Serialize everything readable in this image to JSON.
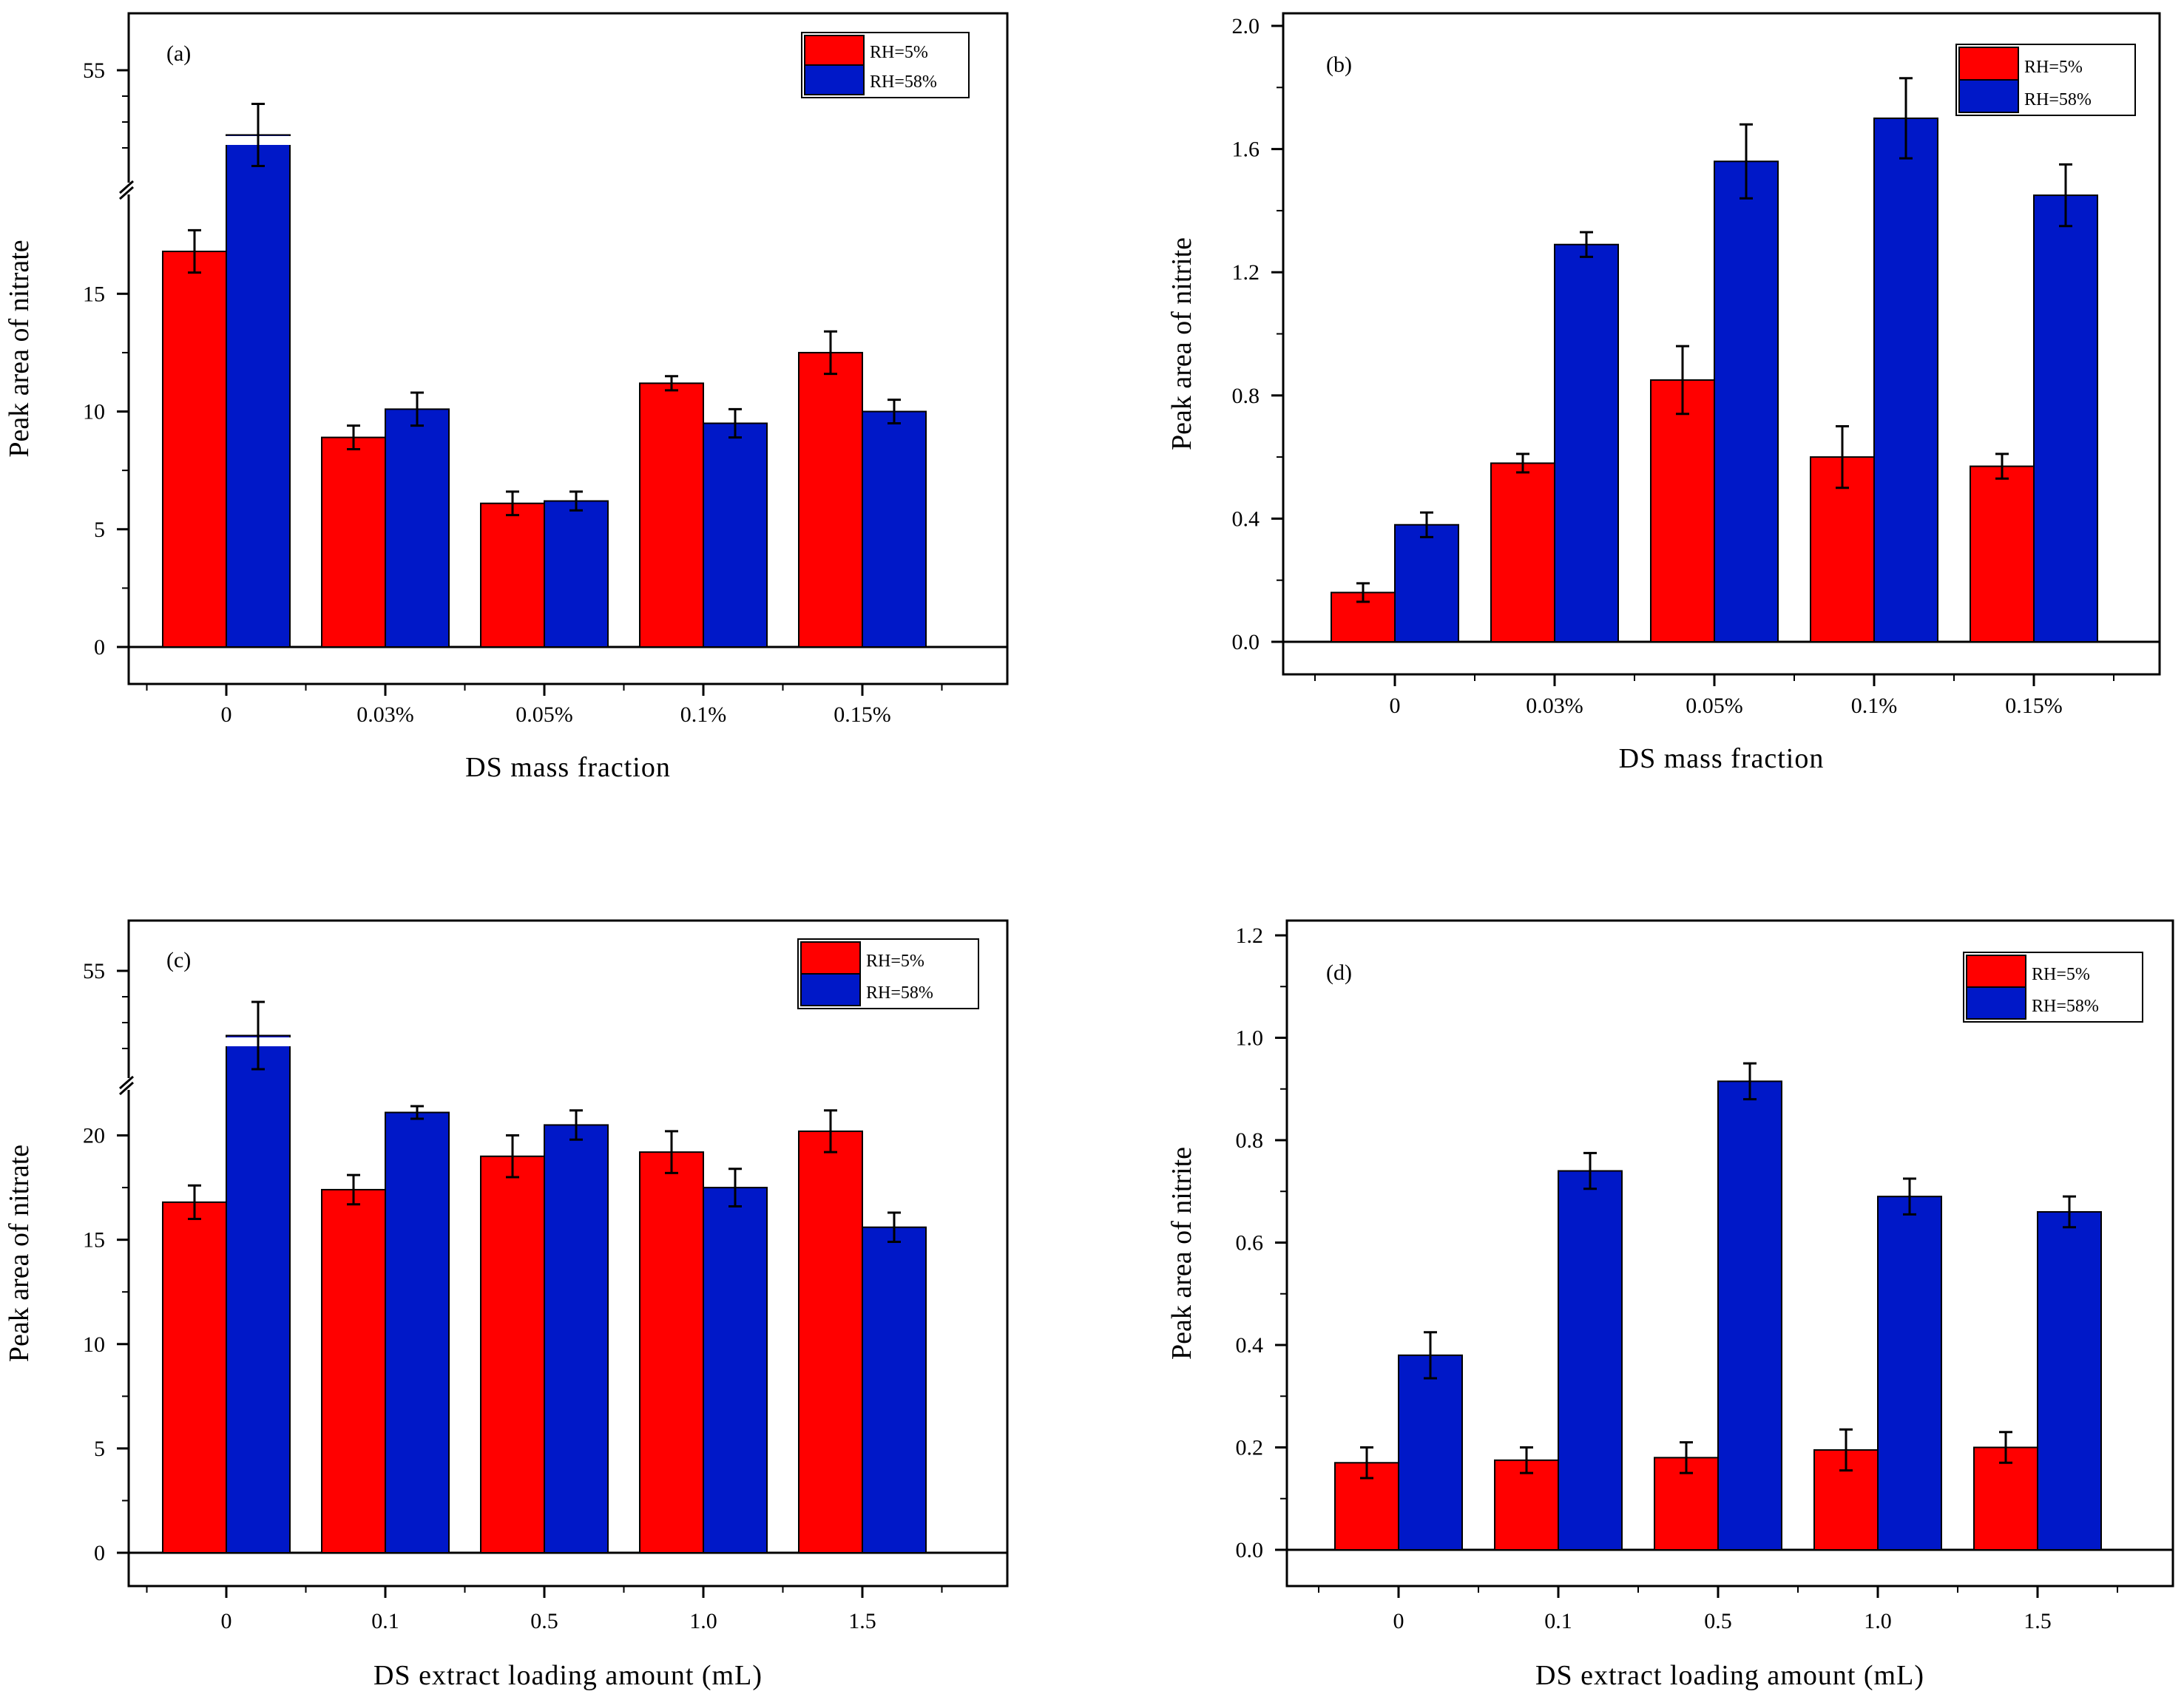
{
  "colors": {
    "rh5": "#ff0000",
    "rh58": "#0018c8"
  },
  "chart_data": [
    {
      "id": "a",
      "type": "bar",
      "panel_label": "(a)",
      "xlabel": "DS mass fraction",
      "ylabel": "Peak area of nitrate",
      "categories": [
        "0",
        "0.03%",
        "0.05%",
        "0.1%",
        "0.15%"
      ],
      "ylim": [
        -1.5,
        28.5
      ],
      "axis_break": {
        "lower_max": 19.5,
        "upper_value": 55
      },
      "yticks": [
        0,
        5,
        10,
        15
      ],
      "ytick_labels": [
        "0",
        "5",
        "10",
        "15"
      ],
      "upper_tick_label": "55",
      "legend": [
        "RH=5%",
        "RH=58%"
      ],
      "series": [
        {
          "name": "RH=5%",
          "values": [
            16.8,
            8.9,
            6.1,
            11.2,
            12.5
          ],
          "errors": [
            0.9,
            0.5,
            0.5,
            0.3,
            0.9
          ]
        },
        {
          "name": "RH=58%",
          "values": [
            52.5,
            10.1,
            6.2,
            9.5,
            10.0
          ],
          "errors": [
            1.2,
            0.7,
            0.4,
            0.6,
            0.5
          ]
        }
      ]
    },
    {
      "id": "b",
      "type": "bar",
      "panel_label": "(b)",
      "xlabel": "DS mass fraction",
      "ylabel": "Peak area of nitrite",
      "categories": [
        "0",
        "0.03%",
        "0.05%",
        "0.1%",
        "0.15%"
      ],
      "ylim": [
        -0.11,
        2.0
      ],
      "yticks": [
        0.0,
        0.4,
        0.8,
        1.2,
        1.6,
        2.0
      ],
      "ytick_labels": [
        "0.0",
        "0.4",
        "0.8",
        "1.2",
        "1.6",
        "2.0"
      ],
      "legend": [
        "RH=5%",
        "RH=58%"
      ],
      "series": [
        {
          "name": "RH=5%",
          "values": [
            0.16,
            0.58,
            0.85,
            0.6,
            0.57
          ],
          "errors": [
            0.03,
            0.03,
            0.11,
            0.1,
            0.04
          ]
        },
        {
          "name": "RH=58%",
          "values": [
            0.38,
            1.29,
            1.56,
            1.7,
            1.45
          ],
          "errors": [
            0.04,
            0.04,
            0.12,
            0.13,
            0.1
          ]
        }
      ]
    },
    {
      "id": "c",
      "type": "bar",
      "panel_label": "(c)",
      "xlabel": "DS extract loading amount (mL)",
      "ylabel": "Peak area of nitrate",
      "categories": [
        "0",
        "0.1",
        "0.5",
        "1.0",
        "1.5"
      ],
      "ylim": [
        -1.5,
        32.5
      ],
      "axis_break": {
        "lower_max": 22.5,
        "upper_value": 55
      },
      "yticks": [
        0,
        5,
        10,
        15,
        20
      ],
      "ytick_labels": [
        "0",
        "5",
        "10",
        "15",
        "20"
      ],
      "upper_tick_label": "55",
      "legend": [
        "RH=5%",
        "RH=58%"
      ],
      "series": [
        {
          "name": "RH=5%",
          "values": [
            16.8,
            17.4,
            19.0,
            19.2,
            20.2
          ],
          "errors": [
            0.8,
            0.7,
            1.0,
            1.0,
            1.0
          ]
        },
        {
          "name": "RH=58%",
          "values": [
            52.5,
            21.1,
            20.5,
            17.5,
            15.6
          ],
          "errors": [
            1.3,
            0.3,
            0.7,
            0.9,
            0.7
          ]
        }
      ]
    },
    {
      "id": "d",
      "type": "bar",
      "panel_label": "(d)",
      "xlabel": "DS extract loading amount (mL)",
      "ylabel": "Peak area of nitrite",
      "categories": [
        "0",
        "0.1",
        "0.5",
        "1.0",
        "1.5"
      ],
      "ylim": [
        -0.065,
        1.2
      ],
      "yticks": [
        0.0,
        0.2,
        0.4,
        0.6,
        0.8,
        1.0,
        1.2
      ],
      "ytick_labels": [
        "0.0",
        "0.2",
        "0.4",
        "0.6",
        "0.8",
        "1.0",
        "1.2"
      ],
      "legend": [
        "RH=5%",
        "RH=58%"
      ],
      "series": [
        {
          "name": "RH=5%",
          "values": [
            0.17,
            0.175,
            0.18,
            0.195,
            0.2
          ],
          "errors": [
            0.03,
            0.025,
            0.03,
            0.04,
            0.03
          ]
        },
        {
          "name": "RH=58%",
          "values": [
            0.38,
            0.74,
            0.915,
            0.69,
            0.66
          ],
          "errors": [
            0.045,
            0.035,
            0.035,
            0.035,
            0.03
          ]
        }
      ]
    }
  ]
}
